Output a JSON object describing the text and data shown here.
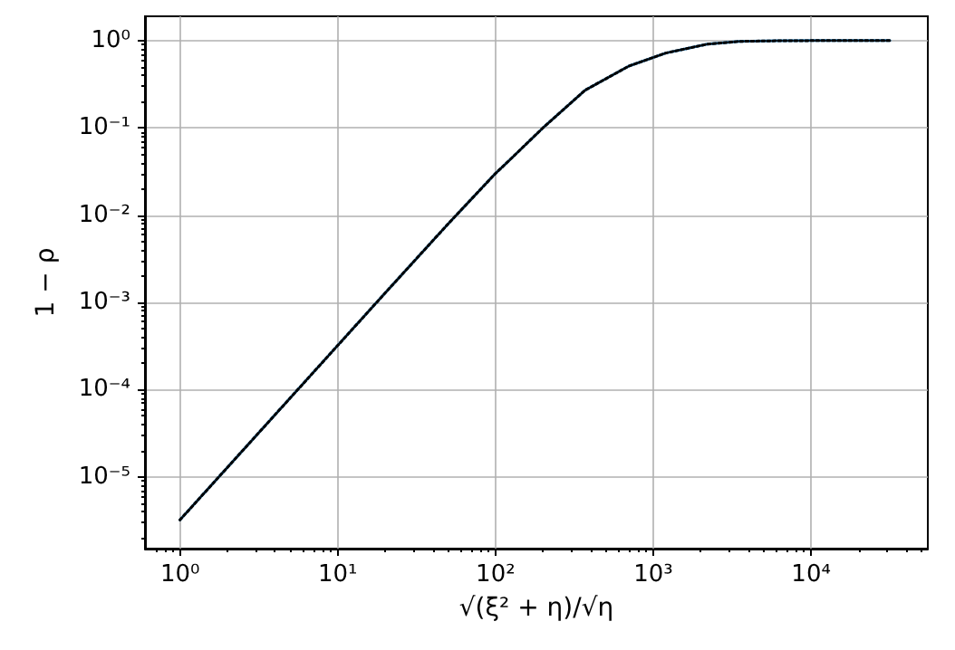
{
  "chart_data": {
    "type": "line",
    "xlabel": "√(ξ² + η)/√η",
    "ylabel": "1 − ρ",
    "log": "xy",
    "grid": true,
    "marker": "none",
    "x": [
      1,
      2,
      5,
      10,
      20,
      50,
      100,
      120,
      200,
      370,
      700,
      1200,
      2200,
      3500,
      6000,
      10000,
      31600
    ],
    "xlim": [
      0.6,
      55000
    ],
    "ylim": [
      1.5e-06,
      1.9
    ],
    "xticks": [
      {
        "value": 1,
        "label": "10⁰"
      },
      {
        "value": 10,
        "label": "10¹"
      },
      {
        "value": 100,
        "label": "10²"
      },
      {
        "value": 1000,
        "label": "10³"
      },
      {
        "value": 10000,
        "label": "10⁴"
      }
    ],
    "yticks": [
      {
        "value": 1e-05,
        "label": "10⁻⁵"
      },
      {
        "value": 0.0001,
        "label": "10⁻⁴"
      },
      {
        "value": 0.001,
        "label": "10⁻³"
      },
      {
        "value": 0.01,
        "label": "10⁻²"
      },
      {
        "value": 0.1,
        "label": "10⁻¹"
      },
      {
        "value": 1,
        "label": "10⁰"
      }
    ],
    "series": [
      {
        "color": "#1f77b4",
        "line_style": "solid",
        "values": [
          3.2e-06,
          1.28e-05,
          8e-05,
          0.00032,
          0.00128,
          0.0079,
          0.03,
          0.041,
          0.1,
          0.27,
          0.51,
          0.72,
          0.91,
          0.98,
          0.995,
          1,
          1
        ]
      },
      {
        "color": "#000000",
        "line_style": "dotted",
        "values": [
          3.2e-06,
          1.28e-05,
          8e-05,
          0.00032,
          0.00128,
          0.0079,
          0.03,
          0.041,
          0.1,
          0.27,
          0.51,
          0.72,
          0.91,
          0.98,
          0.995,
          1,
          1
        ]
      }
    ]
  }
}
